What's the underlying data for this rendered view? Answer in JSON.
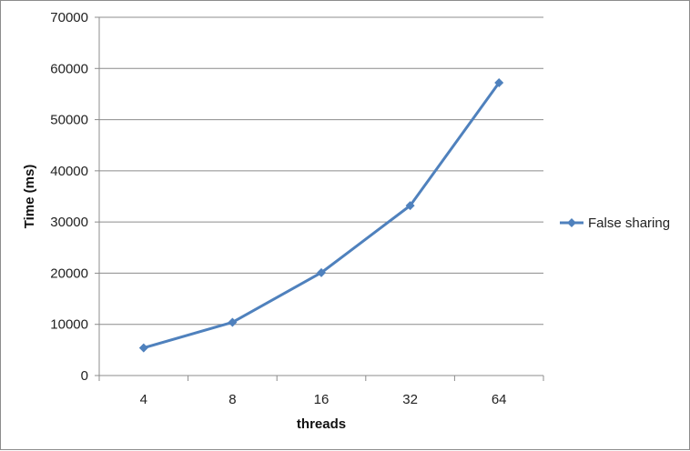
{
  "chart_data": {
    "type": "line",
    "title": "",
    "categories": [
      "4",
      "8",
      "16",
      "32",
      "64"
    ],
    "series": [
      {
        "name": "False sharing",
        "values": [
          5400,
          10400,
          20100,
          33200,
          57200
        ],
        "color": "#4f81bd"
      }
    ],
    "xlabel": "threads",
    "ylabel": "Time (ms)",
    "ylim": [
      0,
      70000
    ],
    "yticks": [
      0,
      10000,
      20000,
      30000,
      40000,
      50000,
      60000,
      70000
    ],
    "grid": true,
    "legend_position": "right"
  }
}
